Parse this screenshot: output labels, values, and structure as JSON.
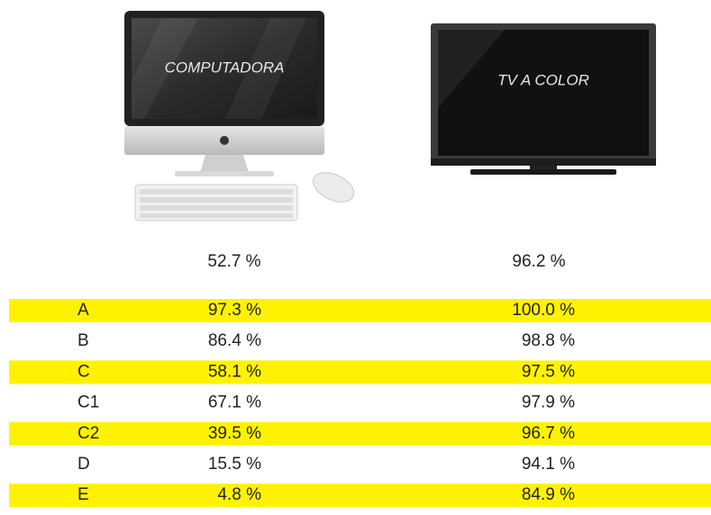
{
  "devices": [
    {
      "label": "COMPUTADORA",
      "total": "52.7 %"
    },
    {
      "label": "TV A COLOR",
      "total": "96.2 %"
    }
  ],
  "table": {
    "rows": [
      [
        "A",
        "97.3 %",
        "100.0 %"
      ],
      [
        "B",
        "86.4 %",
        "98.8 %"
      ],
      [
        "C",
        "58.1 %",
        "97.5 %"
      ],
      [
        "C1",
        "67.1 %",
        "97.9 %"
      ],
      [
        "C2",
        "39.5 %",
        "96.7 %"
      ],
      [
        "D",
        "15.5 %",
        "94.1 %"
      ],
      [
        "E",
        "4.8 %",
        "84.9 %"
      ]
    ]
  }
}
